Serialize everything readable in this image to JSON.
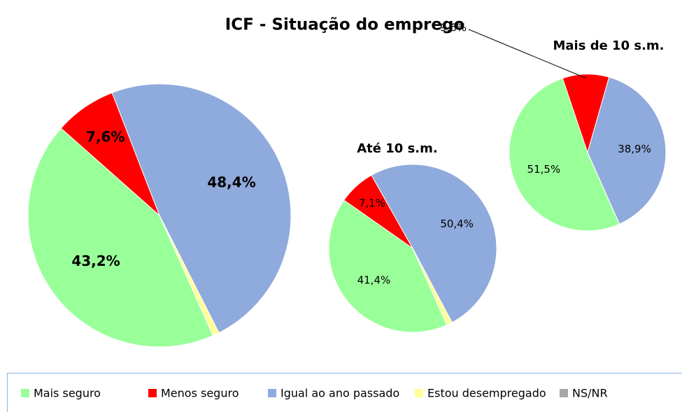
{
  "chart_data": {
    "type": "pie",
    "title": "ICF - Situação do emprego",
    "categories": [
      "Mais seguro",
      "Menos seguro",
      "Igual ao ano passado",
      "Estou desempregado",
      "NS/NR"
    ],
    "colors": [
      "#99ff99",
      "#ff0000",
      "#8faadc",
      "#ffff99",
      "#a6a6a6"
    ],
    "series": [
      {
        "values": [
          43.2,
          7.6,
          48.4,
          0.8,
          0
        ],
        "value_labels": [
          "43,2%",
          "7,6%",
          "48,4%",
          null,
          null
        ]
      },
      {
        "name": "Até 10 s.m.",
        "values": [
          41.4,
          7.1,
          50.4,
          1.1,
          0
        ],
        "value_labels": [
          "41,4%",
          "7,1%",
          "50,4%",
          null,
          null
        ]
      },
      {
        "name": "Mais de 10 s.m.",
        "values": [
          51.5,
          9.6,
          38.9,
          0,
          0
        ],
        "value_labels": [
          "51,5%",
          "9,6%",
          "38,9%",
          null,
          null
        ]
      }
    ]
  }
}
